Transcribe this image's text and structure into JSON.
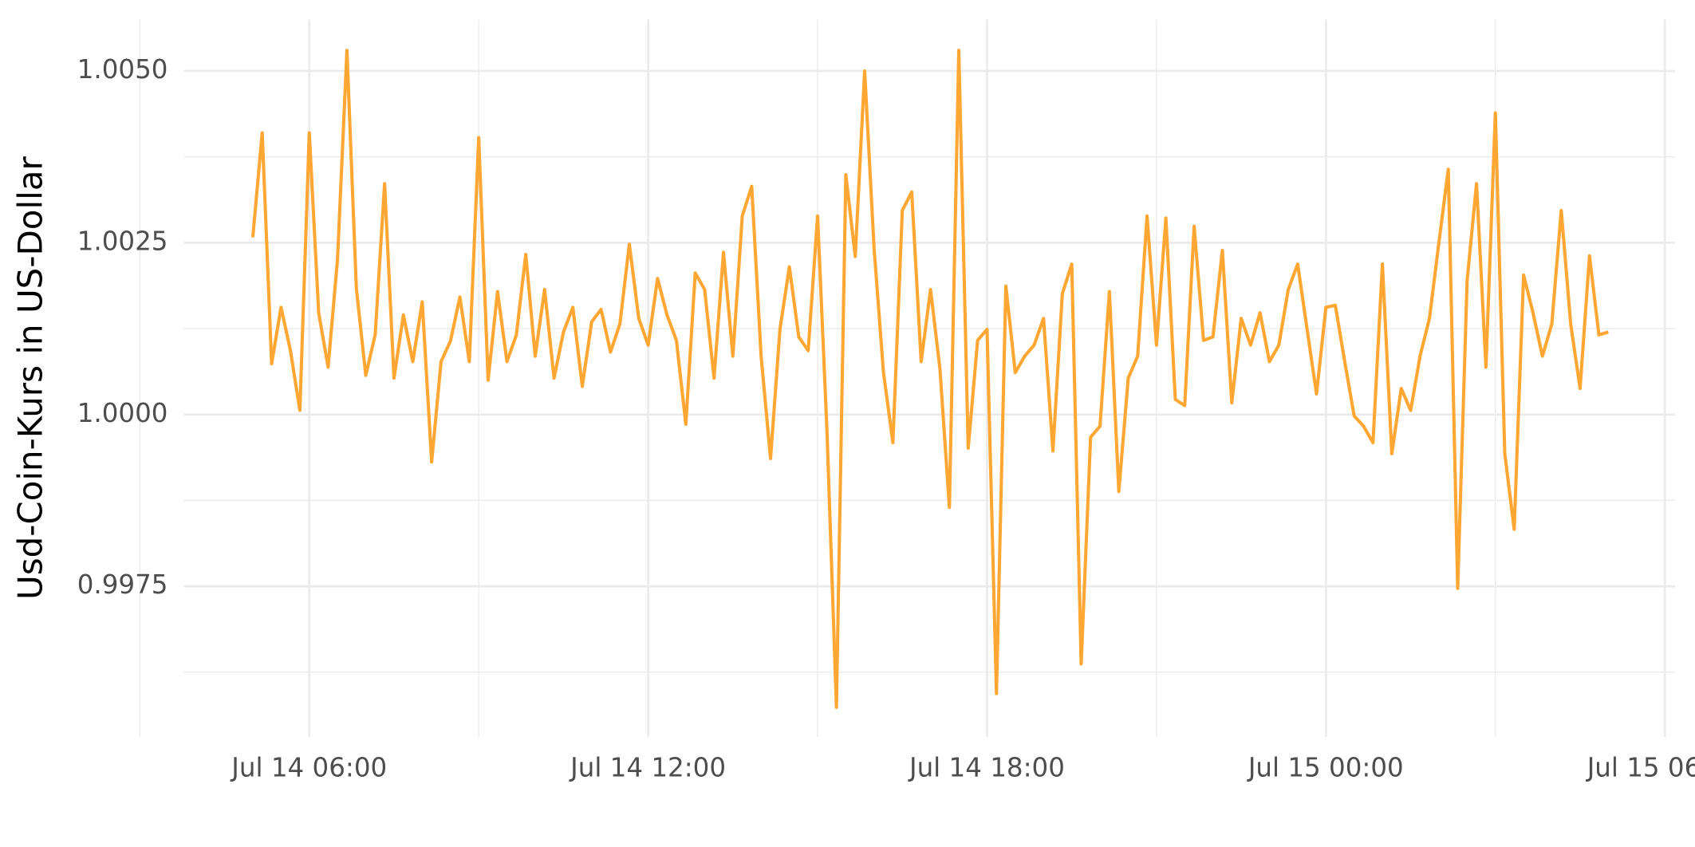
{
  "chart_data": {
    "type": "line",
    "y_label": "Usd-Coin-Kurs in US-Dollar",
    "x": [
      "Jul 14 05:00",
      "Jul 14 05:10",
      "Jul 14 05:20",
      "Jul 14 05:30",
      "Jul 14 05:40",
      "Jul 14 05:50",
      "Jul 14 06:00",
      "Jul 14 06:10",
      "Jul 14 06:20",
      "Jul 14 06:30",
      "Jul 14 06:40",
      "Jul 14 06:50",
      "Jul 14 07:00",
      "Jul 14 07:10",
      "Jul 14 07:20",
      "Jul 14 07:30",
      "Jul 14 07:40",
      "Jul 14 07:50",
      "Jul 14 08:00",
      "Jul 14 08:10",
      "Jul 14 08:20",
      "Jul 14 08:30",
      "Jul 14 08:40",
      "Jul 14 08:50",
      "Jul 14 09:00",
      "Jul 14 09:10",
      "Jul 14 09:20",
      "Jul 14 09:30",
      "Jul 14 09:40",
      "Jul 14 09:50",
      "Jul 14 10:00",
      "Jul 14 10:10",
      "Jul 14 10:20",
      "Jul 14 10:30",
      "Jul 14 10:40",
      "Jul 14 10:50",
      "Jul 14 11:00",
      "Jul 14 11:10",
      "Jul 14 11:20",
      "Jul 14 11:30",
      "Jul 14 11:40",
      "Jul 14 11:50",
      "Jul 14 12:00",
      "Jul 14 12:10",
      "Jul 14 12:20",
      "Jul 14 12:30",
      "Jul 14 12:40",
      "Jul 14 12:50",
      "Jul 14 13:00",
      "Jul 14 13:10",
      "Jul 14 13:20",
      "Jul 14 13:30",
      "Jul 14 13:40",
      "Jul 14 13:50",
      "Jul 14 14:00",
      "Jul 14 14:10",
      "Jul 14 14:20",
      "Jul 14 14:30",
      "Jul 14 14:40",
      "Jul 14 14:50",
      "Jul 14 15:00",
      "Jul 14 15:10",
      "Jul 14 15:20",
      "Jul 14 15:30",
      "Jul 14 15:40",
      "Jul 14 15:50",
      "Jul 14 16:00",
      "Jul 14 16:10",
      "Jul 14 16:20",
      "Jul 14 16:30",
      "Jul 14 16:40",
      "Jul 14 16:50",
      "Jul 14 17:00",
      "Jul 14 17:10",
      "Jul 14 17:20",
      "Jul 14 17:30",
      "Jul 14 17:40",
      "Jul 14 17:50",
      "Jul 14 18:00",
      "Jul 14 18:10",
      "Jul 14 18:20",
      "Jul 14 18:30",
      "Jul 14 18:40",
      "Jul 14 18:50",
      "Jul 14 19:00",
      "Jul 14 19:10",
      "Jul 14 19:20",
      "Jul 14 19:30",
      "Jul 14 19:40",
      "Jul 14 19:50",
      "Jul 14 20:00",
      "Jul 14 20:10",
      "Jul 14 20:20",
      "Jul 14 20:30",
      "Jul 14 20:40",
      "Jul 14 20:50",
      "Jul 14 21:00",
      "Jul 14 21:10",
      "Jul 14 21:20",
      "Jul 14 21:30",
      "Jul 14 21:40",
      "Jul 14 21:50",
      "Jul 14 22:00",
      "Jul 14 22:10",
      "Jul 14 22:20",
      "Jul 14 22:30",
      "Jul 14 22:40",
      "Jul 14 22:50",
      "Jul 14 23:00",
      "Jul 14 23:10",
      "Jul 14 23:20",
      "Jul 14 23:30",
      "Jul 14 23:40",
      "Jul 14 23:50",
      "Jul 15 00:00",
      "Jul 15 00:10",
      "Jul 15 00:20",
      "Jul 15 00:30",
      "Jul 15 00:40",
      "Jul 15 00:50",
      "Jul 15 01:00",
      "Jul 15 01:10",
      "Jul 15 01:20",
      "Jul 15 01:30",
      "Jul 15 01:40",
      "Jul 15 01:50",
      "Jul 15 02:00",
      "Jul 15 02:10",
      "Jul 15 02:20",
      "Jul 15 02:30",
      "Jul 15 02:40",
      "Jul 15 02:50",
      "Jul 15 03:00",
      "Jul 15 03:10",
      "Jul 15 03:20",
      "Jul 15 03:30",
      "Jul 15 03:40",
      "Jul 15 03:50",
      "Jul 15 04:00",
      "Jul 15 04:10",
      "Jul 15 04:20",
      "Jul 15 04:30",
      "Jul 15 04:40",
      "Jul 15 04:50",
      "Jul 15 05:00"
    ],
    "series": [
      {
        "color": "#ffa633",
        "values": [
          1.00258,
          1.0041,
          1.00074,
          1.00156,
          1.00093,
          1.00006,
          1.0041,
          1.00148,
          1.00069,
          1.00226,
          1.0053,
          1.00184,
          1.00057,
          1.00116,
          1.00336,
          1.00053,
          1.00145,
          1.00077,
          1.00164,
          0.99931,
          1.00077,
          1.00107,
          1.00171,
          1.00077,
          1.00403,
          1.0005,
          1.00179,
          1.00077,
          1.00116,
          1.00233,
          1.00085,
          1.00182,
          1.00053,
          1.0012,
          1.00156,
          1.00041,
          1.00135,
          1.00153,
          1.00091,
          1.00132,
          1.00248,
          1.0014,
          1.00101,
          1.00198,
          1.00145,
          1.00108,
          0.99986,
          1.00206,
          1.00182,
          1.00053,
          1.00236,
          1.00085,
          1.00289,
          1.00332,
          1.00085,
          0.99936,
          1.00124,
          1.00215,
          1.00113,
          1.00093,
          1.00289,
          0.99975,
          0.99574,
          1.00349,
          1.0023,
          1.005,
          1.00242,
          1.00061,
          0.99959,
          1.00297,
          1.00324,
          1.00077,
          1.00182,
          1.00066,
          0.99865,
          1.0053,
          0.99951,
          1.00108,
          1.00124,
          0.99594,
          1.00187,
          1.00061,
          1.00085,
          1.00101,
          1.0014,
          0.99947,
          1.00176,
          1.00219,
          0.99637,
          0.99967,
          0.99983,
          1.00179,
          0.99888,
          1.00053,
          1.00085,
          1.00289,
          1.00101,
          1.00286,
          1.00022,
          1.00013,
          1.00274,
          1.00108,
          1.00113,
          1.00239,
          1.00017,
          1.0014,
          1.00101,
          1.00148,
          1.00077,
          1.00101,
          1.00182,
          1.00219,
          1.00124,
          1.0003,
          1.00156,
          1.00159,
          1.00077,
          0.99998,
          0.99983,
          0.99959,
          1.00219,
          0.99943,
          1.00038,
          1.00006,
          1.00085,
          1.0014,
          1.0025,
          1.00357,
          0.99747,
          1.00195,
          1.00336,
          1.00069,
          1.00439,
          0.99943,
          0.99833,
          1.00203,
          1.00148,
          1.00085,
          1.00132,
          1.00297,
          1.00132,
          1.00038,
          1.00231,
          1.00116,
          1.0012
        ]
      }
    ],
    "xlim": [
      "Jul 14 03:47",
      "Jul 15 06:11"
    ],
    "xticks": [
      "Jul 14 06:00",
      "Jul 14 12:00",
      "Jul 14 18:00",
      "Jul 15 00:00",
      "Jul 15 06:00"
    ],
    "ylim": [
      0.99531,
      1.00575
    ],
    "yticks": [
      {
        "value": 0.9975,
        "label": "0.9975"
      },
      {
        "value": 1.0,
        "label": "1.0000"
      },
      {
        "value": 1.0025,
        "label": "1.0025"
      },
      {
        "value": 1.005,
        "label": "1.0050"
      }
    ],
    "grid": true
  }
}
